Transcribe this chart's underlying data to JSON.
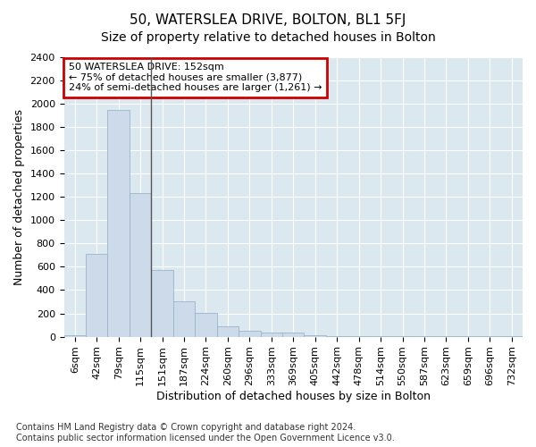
{
  "title1": "50, WATERSLEA DRIVE, BOLTON, BL1 5FJ",
  "title2": "Size of property relative to detached houses in Bolton",
  "xlabel": "Distribution of detached houses by size in Bolton",
  "ylabel": "Number of detached properties",
  "bar_color": "#ccdaea",
  "bar_edge_color": "#9ab4cc",
  "categories": [
    "6sqm",
    "42sqm",
    "79sqm",
    "115sqm",
    "151sqm",
    "187sqm",
    "224sqm",
    "260sqm",
    "296sqm",
    "333sqm",
    "369sqm",
    "405sqm",
    "442sqm",
    "478sqm",
    "514sqm",
    "550sqm",
    "587sqm",
    "623sqm",
    "659sqm",
    "696sqm",
    "732sqm"
  ],
  "values": [
    15,
    710,
    1950,
    1230,
    575,
    305,
    205,
    90,
    50,
    35,
    35,
    15,
    5,
    3,
    2,
    1,
    1,
    1,
    1,
    1,
    1
  ],
  "ylim": [
    0,
    2400
  ],
  "yticks": [
    0,
    200,
    400,
    600,
    800,
    1000,
    1200,
    1400,
    1600,
    1800,
    2000,
    2200,
    2400
  ],
  "annotation_text": "50 WATERSLEA DRIVE: 152sqm\n← 75% of detached houses are smaller (3,877)\n24% of semi-detached houses are larger (1,261) →",
  "annotation_box_color": "#ffffff",
  "annotation_border_color": "#cc0000",
  "vline_color": "#555555",
  "bg_color": "#ffffff",
  "plot_bg_color": "#dce8f0",
  "footer_text": "Contains HM Land Registry data © Crown copyright and database right 2024.\nContains public sector information licensed under the Open Government Licence v3.0.",
  "grid_color": "#ffffff",
  "title1_fontsize": 11,
  "title2_fontsize": 10,
  "xlabel_fontsize": 9,
  "ylabel_fontsize": 9,
  "tick_fontsize": 8,
  "footer_fontsize": 7,
  "annotation_fontsize": 8
}
